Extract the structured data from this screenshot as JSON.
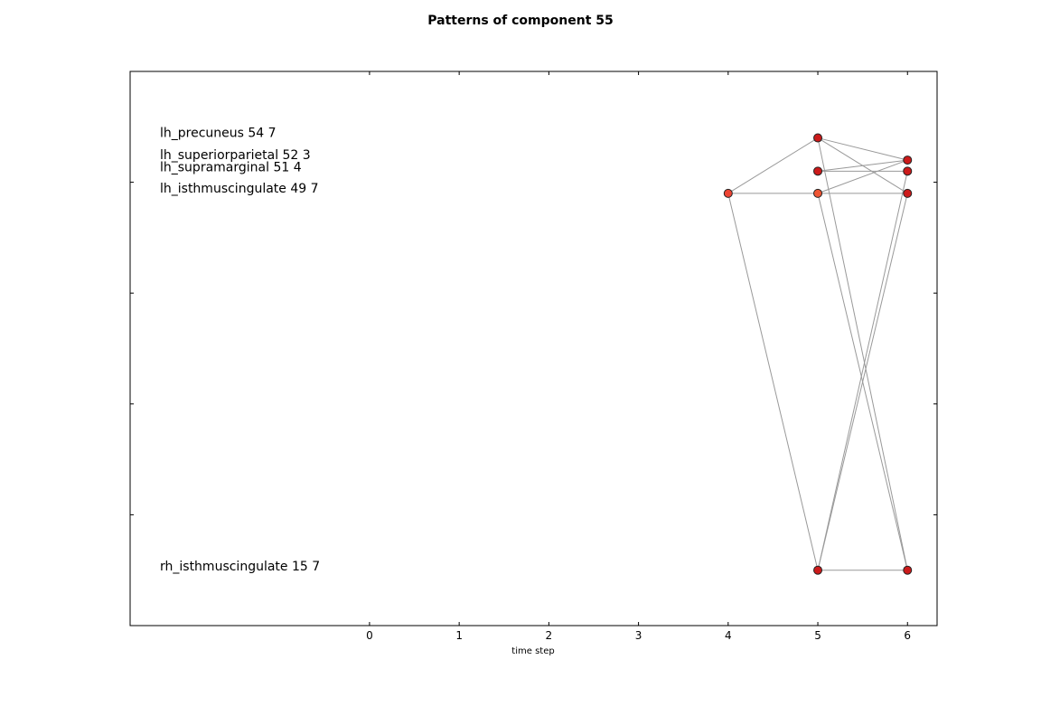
{
  "chart_data": {
    "type": "scatter",
    "title": "Patterns of component 55",
    "xlabel": "time step",
    "ylabel": "",
    "xlim": [
      -2.67,
      6.33
    ],
    "ylim": [
      0,
      5
    ],
    "x_ticks": [
      0,
      1,
      2,
      3,
      4,
      5,
      6
    ],
    "y_ticks": [
      1,
      2,
      3,
      4
    ],
    "grid": false,
    "legend": "none",
    "region_labels": [
      {
        "text": "lh_precuneus 54 7",
        "y": 4.44
      },
      {
        "text": "lh_superiorparietal 52 3",
        "y": 4.24
      },
      {
        "text": "lh_supramarginal 51 4",
        "y": 4.13
      },
      {
        "text": "lh_isthmuscingulate 49 7",
        "y": 3.94
      },
      {
        "text": "rh_isthmuscingulate 15 7",
        "y": 0.53
      }
    ],
    "points": [
      {
        "id": "p4-isthmus",
        "x": 4,
        "y": 3.9,
        "color": "#ee4433"
      },
      {
        "id": "p5-precuneus",
        "x": 5,
        "y": 4.4,
        "color": "#cc1a1a"
      },
      {
        "id": "p5-supramarginal",
        "x": 5,
        "y": 4.1,
        "color": "#cc1a1a"
      },
      {
        "id": "p5-isthmus",
        "x": 5,
        "y": 3.9,
        "color": "#ee5533"
      },
      {
        "id": "p5-rh-isthmus",
        "x": 5,
        "y": 0.5,
        "color": "#cc1a1a"
      },
      {
        "id": "p6-superiorparietal",
        "x": 6,
        "y": 4.2,
        "color": "#cc1a1a"
      },
      {
        "id": "p6-supramarginal",
        "x": 6,
        "y": 4.1,
        "color": "#cc1a1a"
      },
      {
        "id": "p6-isthmus",
        "x": 6,
        "y": 3.9,
        "color": "#cc1a1a"
      },
      {
        "id": "p6-rh-isthmus",
        "x": 6,
        "y": 0.5,
        "color": "#cc1a1a"
      }
    ],
    "edges": [
      [
        [
          4,
          3.9
        ],
        [
          5,
          4.4
        ]
      ],
      [
        [
          4,
          3.9
        ],
        [
          5,
          3.9
        ]
      ],
      [
        [
          4,
          3.9
        ],
        [
          5,
          0.5
        ]
      ],
      [
        [
          5,
          4.4
        ],
        [
          6,
          4.2
        ]
      ],
      [
        [
          5,
          4.4
        ],
        [
          6,
          3.9
        ]
      ],
      [
        [
          5,
          4.4
        ],
        [
          6,
          0.5
        ]
      ],
      [
        [
          5,
          4.1
        ],
        [
          6,
          4.2
        ]
      ],
      [
        [
          5,
          4.1
        ],
        [
          6,
          4.1
        ]
      ],
      [
        [
          5,
          3.9
        ],
        [
          6,
          4.2
        ]
      ],
      [
        [
          5,
          3.9
        ],
        [
          6,
          3.9
        ]
      ],
      [
        [
          5,
          3.9
        ],
        [
          6,
          0.5
        ]
      ],
      [
        [
          5,
          0.5
        ],
        [
          6,
          0.5
        ]
      ],
      [
        [
          5,
          0.5
        ],
        [
          6,
          3.9
        ]
      ],
      [
        [
          5,
          0.5
        ],
        [
          6,
          4.1
        ]
      ]
    ],
    "colors": {
      "edge": "#999999",
      "marker_edge": "#222222"
    }
  }
}
